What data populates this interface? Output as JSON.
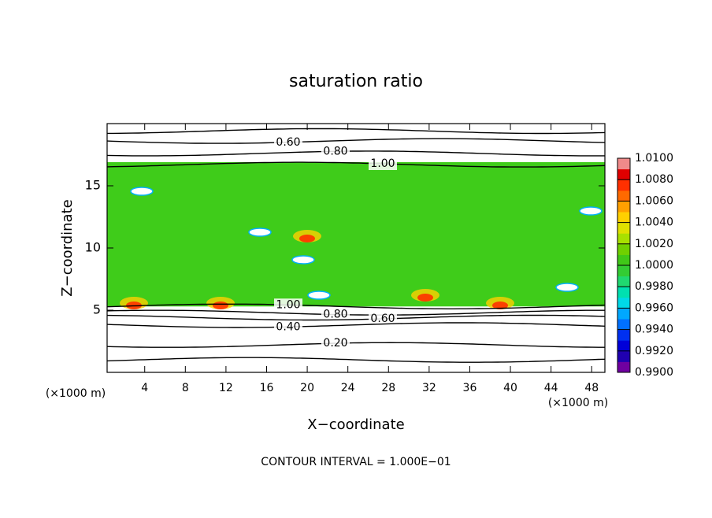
{
  "chart_data": {
    "type": "contour",
    "title": "saturation ratio",
    "x_label": "X−coordinate",
    "y_label": "Z−coordinate",
    "x_unit": "(×1000 m)",
    "note": "CONTOUR INTERVAL = 1.000E−01",
    "xlim": [
      0.3,
      49.3
    ],
    "ylim": [
      0,
      20
    ],
    "xticks": [
      4,
      8,
      12,
      16,
      20,
      24,
      28,
      32,
      36,
      40,
      44,
      48
    ],
    "yticks": [
      5,
      10,
      15
    ],
    "saturated_layer": {
      "z": [
        5.3,
        16.9
      ],
      "color": "#3fcc1a"
    },
    "contours": [
      {
        "value": 0.6,
        "label": "0.60",
        "z": 18.6
      },
      {
        "value": 0.8,
        "label": "0.80",
        "z": 17.6
      },
      {
        "value": 1.0,
        "label": "1.00",
        "z": 16.7
      },
      {
        "value": 1.0,
        "label": "1.00",
        "z": 5.3
      },
      {
        "value": 0.8,
        "label": "0.80",
        "z": 4.8
      },
      {
        "value": 0.6,
        "label": "0.60",
        "z": 4.4
      },
      {
        "value": 0.4,
        "label": "0.40",
        "z": 3.8
      },
      {
        "value": 0.2,
        "label": "0.20",
        "z": 2.2
      },
      {
        "value": 0.4,
        "z": 19.4
      },
      {
        "value": 0.1,
        "z": 1.0
      }
    ],
    "colorbar": {
      "lim": [
        0.99,
        1.01
      ],
      "ticks": [
        {
          "value": 0.99,
          "label": "0.9900"
        },
        {
          "value": 0.992,
          "label": "0.9920"
        },
        {
          "value": 0.994,
          "label": "0.9940"
        },
        {
          "value": 0.996,
          "label": "0.9960"
        },
        {
          "value": 0.998,
          "label": "0.9980"
        },
        {
          "value": 1.0,
          "label": "1.0000"
        },
        {
          "value": 1.002,
          "label": "1.0020"
        },
        {
          "value": 1.004,
          "label": "1.0040"
        },
        {
          "value": 1.006,
          "label": "1.0060"
        },
        {
          "value": 1.008,
          "label": "1.0080"
        },
        {
          "value": 1.01,
          "label": "1.0100"
        }
      ],
      "colors": [
        "#7000a0",
        "#2000b0",
        "#0000d8",
        "#0030f0",
        "#0070ff",
        "#00a8ff",
        "#00d8e8",
        "#00e0b0",
        "#20d870",
        "#33cc33",
        "#40c818",
        "#70d000",
        "#a8e000",
        "#e0e000",
        "#ffd000",
        "#ffa000",
        "#ff6a00",
        "#ff3000",
        "#e00000",
        "#f08a8a"
      ]
    }
  }
}
